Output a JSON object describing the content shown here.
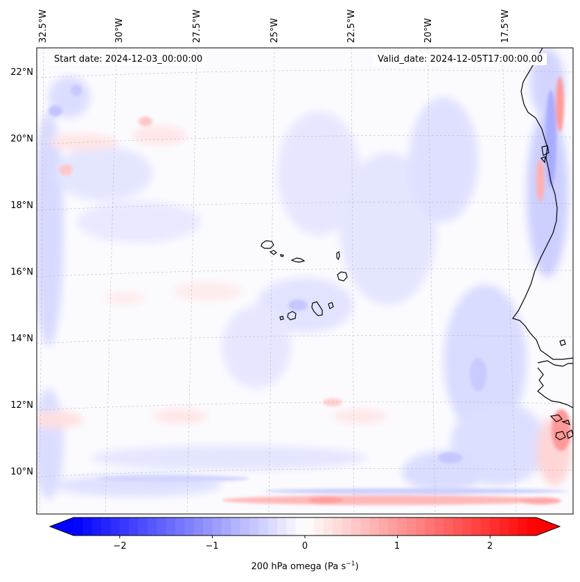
{
  "map": {
    "start_label": "Start date: 2024-12-03_00:00:00",
    "valid_label": "Valid_date: 2024-12-05T17:00:00.00",
    "lon_labels": [
      "32.5°W",
      "30°W",
      "27.5°W",
      "25°W",
      "22.5°W",
      "20°W",
      "17.5°W"
    ],
    "lat_labels": [
      "22°N",
      "20°N",
      "18°N",
      "16°N",
      "14°N",
      "12°N",
      "10°N"
    ],
    "field_colors": {
      "negative": "#0000ff",
      "zero": "#ffffff",
      "positive": "#ff0000"
    }
  },
  "colorbar": {
    "title_main": "200 hPa omega (Pa s",
    "title_exp": "−1",
    "title_end": ")",
    "tick_labels": [
      "−2",
      "−1",
      "0",
      "1",
      "2"
    ],
    "tick_values": [
      -2,
      -1,
      0,
      1,
      2
    ],
    "range": [
      -2.5,
      2.5
    ]
  }
}
